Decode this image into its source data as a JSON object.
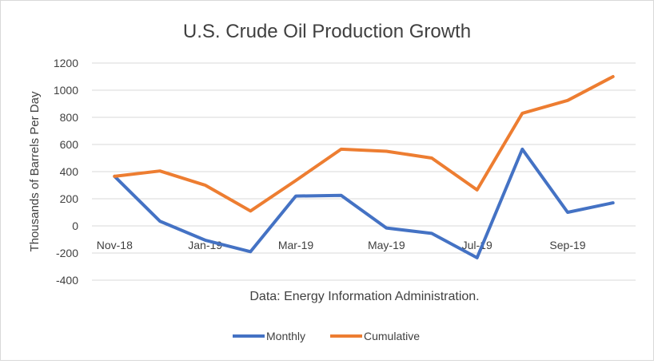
{
  "chart_data": {
    "type": "line",
    "title": "U.S. Crude Oil Production Growth",
    "ylabel": "Thousands of Barrels Per Day",
    "annotation": "Data: Energy Information Administration.",
    "ylim": [
      -400,
      1200
    ],
    "yticks": [
      -400,
      -200,
      0,
      200,
      400,
      600,
      800,
      1000,
      1200
    ],
    "x": [
      "Nov-18",
      "Dec-18",
      "Jan-19",
      "Feb-19",
      "Mar-19",
      "Apr-19",
      "May-19",
      "Jun-19",
      "Jul-19",
      "Aug-19",
      "Sep-19",
      "Oct-19"
    ],
    "xtick_labels": [
      "Nov-18",
      "Jan-19",
      "Mar-19",
      "May-19",
      "Jul-19",
      "Sep-19"
    ],
    "grid": true,
    "legend_position": "bottom",
    "series": [
      {
        "name": "Monthly",
        "color": "#4472C4",
        "values": [
          365,
          35,
          -105,
          -190,
          220,
          225,
          -15,
          -55,
          -235,
          565,
          100,
          170
        ]
      },
      {
        "name": "Cumulative",
        "color": "#ED7D31",
        "values": [
          365,
          405,
          300,
          110,
          335,
          565,
          550,
          500,
          265,
          830,
          925,
          1100
        ]
      }
    ]
  }
}
